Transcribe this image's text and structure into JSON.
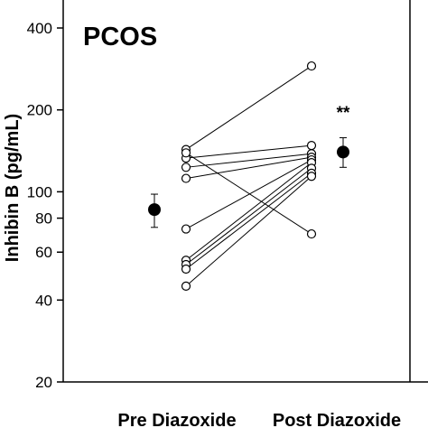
{
  "chart_data": {
    "type": "scatter",
    "title": "PCOS",
    "ylabel": "Inhibin B (pg/mL)",
    "xlabel": "",
    "yscale": "log",
    "ylim": [
      20,
      500
    ],
    "categories": [
      "Pre Diazoxide",
      "Post Diazoxide"
    ],
    "yticks": [
      20,
      40,
      60,
      80,
      100,
      200,
      400
    ],
    "grid": false,
    "individual_pairs": [
      [
        143,
        290
      ],
      [
        133,
        148
      ],
      [
        123,
        138
      ],
      [
        112,
        134
      ],
      [
        73,
        131
      ],
      [
        56,
        128
      ],
      [
        54,
        122
      ],
      [
        52,
        117
      ],
      [
        45,
        114
      ],
      [
        139,
        70
      ]
    ],
    "means": [
      {
        "category": "Pre Diazoxide",
        "value": 86,
        "error_low": 74,
        "error_high": 98
      },
      {
        "category": "Post Diazoxide",
        "value": 140,
        "error_low": 123,
        "error_high": 158
      }
    ],
    "annotations": [
      {
        "category": "Post Diazoxide",
        "text": "**"
      }
    ]
  }
}
